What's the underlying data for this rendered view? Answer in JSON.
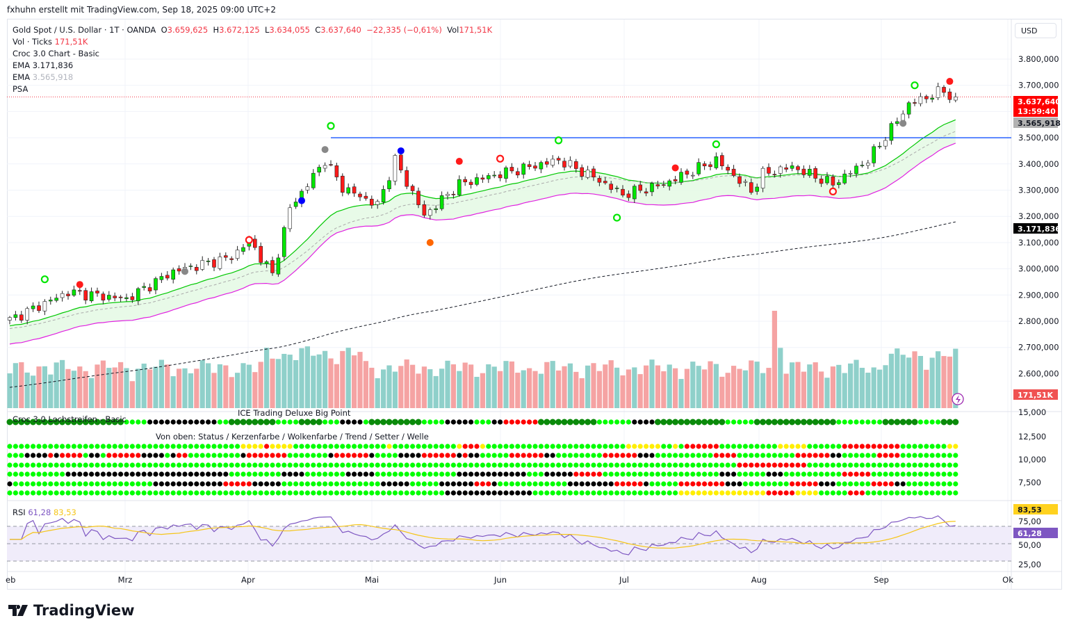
{
  "credit": "fxhuhn erstellt mit TradingView.com, Sep 18, 2025 09:00 UTC+2",
  "legend": {
    "symbol": "Gold Spot / U.S. Dollar · 1T · OANDA",
    "o_label": "O",
    "o": "3.659,625",
    "h_label": "H",
    "h": "3.672,125",
    "l_label": "L",
    "l": "3.634,055",
    "c_label": "C",
    "c": "3.637,640",
    "change": "−22,335 (−0,61%)",
    "vol_label": "Vol",
    "vol": "171,51K",
    "line2_label": "Vol · Ticks",
    "line2_value": "171,51K",
    "line3": "Croc 3.0 Chart - Basic",
    "ema1_label": "EMA",
    "ema1_value": "3.171,836",
    "ema2_label": "EMA",
    "ema2_value": "3.565,918",
    "psa": "PSA"
  },
  "currency": "USD",
  "price_axis": [
    "3.800,000",
    "3.700,000",
    "3.500,000",
    "3.400,000",
    "3.300,000",
    "3.200,000",
    "3.100,000",
    "3.000,000",
    "2.900,000",
    "2.800,000",
    "2.700,000",
    "2.600,000"
  ],
  "tags": {
    "last_price": "3.637,640",
    "countdown": "13:59:40",
    "ema_short": "3.565,918",
    "ema_long": "3.171,836",
    "volume": "171,51K",
    "rsi_ma": "83,53",
    "rsi": "61,28"
  },
  "dots_axis": [
    "15,000",
    "12,500",
    "10,000",
    "7,500"
  ],
  "rsi_axis": [
    "75,00",
    "50,00",
    "25,00"
  ],
  "panels": {
    "lochstreifen": "Croc 3.0 Lochstreifen - Basic",
    "big_point": "ICE Trading Deluxe Big Point",
    "rows_caption": "Von oben: Status / Kerzenfarbe / Wolkenfarbe / Trend / Setter / Welle",
    "rsi_label": "RSI",
    "rsi_value": "61,28",
    "rsi_ma_value": "83,53"
  },
  "time_axis": [
    "eb",
    "Mrz",
    "Apr",
    "Mai",
    "Jun",
    "Jul",
    "Aug",
    "Sep",
    "Ok"
  ],
  "brand": "TradingView",
  "colors": {
    "up": "#00e600",
    "down": "#ff1a1a",
    "vol_up": "#8fd0ca",
    "vol_down": "#f5a3a3",
    "ema_cloud": "#00c800",
    "lower_band": "#e020e0",
    "resistance": "#2962ff",
    "ema_long": "#131722",
    "rsi": "#7e57c2",
    "rsi_ma": "#f5c518"
  },
  "chart_data": {
    "type": "candlestick",
    "title": "Gold Spot / U.S. Dollar · 1T · OANDA",
    "bars": 163,
    "close_anchors": [
      [
        0,
        2805
      ],
      [
        10,
        2911
      ],
      [
        20,
        2885
      ],
      [
        28,
        2990
      ],
      [
        38,
        3044
      ],
      [
        41,
        3110
      ],
      [
        45,
        2978
      ],
      [
        48,
        3230
      ],
      [
        54,
        3415
      ],
      [
        57,
        3310
      ],
      [
        63,
        3243
      ],
      [
        66,
        3415
      ],
      [
        71,
        3203
      ],
      [
        77,
        3323
      ],
      [
        84,
        3362
      ],
      [
        94,
        3415
      ],
      [
        100,
        3350
      ],
      [
        105,
        3283
      ],
      [
        112,
        3323
      ],
      [
        121,
        3415
      ],
      [
        127,
        3296
      ],
      [
        129,
        3362
      ],
      [
        134,
        3389
      ],
      [
        141,
        3323
      ],
      [
        147,
        3415
      ],
      [
        151,
        3535
      ],
      [
        154,
        3628
      ],
      [
        160,
        3681
      ],
      [
        162,
        3638
      ]
    ],
    "resistance_level": 3500,
    "resistance_from_bar": 55,
    "ema_long_seed": 2545,
    "ylim": [
      2540,
      3840
    ],
    "volume_spike_bars": [
      [
        131,
        420000
      ],
      [
        132,
        260000
      ]
    ],
    "signals": [
      [
        6,
        2960,
        "#00e600",
        "ring"
      ],
      [
        12,
        2940,
        "#ff1a1a",
        "dot"
      ],
      [
        30,
        2990,
        "#888888",
        "dot"
      ],
      [
        41,
        3110,
        "#ff1a1a",
        "ring"
      ],
      [
        50,
        3260,
        "#0000ff",
        "dot"
      ],
      [
        54,
        3455,
        "#888888",
        "dot"
      ],
      [
        55,
        3545,
        "#00e600",
        "ring"
      ],
      [
        67,
        3450,
        "#0000ff",
        "dot"
      ],
      [
        72,
        3100,
        "#ff6600",
        "dot"
      ],
      [
        77,
        3410,
        "#ff1a1a",
        "dot"
      ],
      [
        84,
        3420,
        "#ff1a1a",
        "ring"
      ],
      [
        94,
        3490,
        "#00e600",
        "ring"
      ],
      [
        104,
        3195,
        "#00e600",
        "ring"
      ],
      [
        114,
        3385,
        "#ff1a1a",
        "dot"
      ],
      [
        121,
        3475,
        "#00e600",
        "ring"
      ],
      [
        141,
        3295,
        "#ff1a1a",
        "ring"
      ],
      [
        153,
        3555,
        "#888888",
        "dot"
      ],
      [
        155,
        3700,
        "#00e600",
        "ring"
      ],
      [
        161,
        3715,
        "#ff1a1a",
        "dot"
      ]
    ],
    "dot_rows": {
      "lochstreifen": "G20 g4 k12 g2 G8 g4 G4 g3 k4 g1 G9 g4 k5 g3 k2 r6 G10 g6 k4 G12 g5 G14 g8 G6 g4 G10 g6",
      "status": "g40 y4 r1 y4 g16 y1 g11 y1 r3 y1 g24 y6 g2 y1 g1 r6 g10 y5 g6 r10 g8 y4 g10 r6 g10",
      "kerzenfarbe": "g3 k4 r1 k1 r4 g1 k2 g1 r6 k4 g1 k1 r2 g9 k1 r7 g7 k1 r6 k1 g4 k4 r6 k1 r1 k2 g5 r6 k2 g8 r6 k3 g10 r4 g10 r6 k2 g6 r4 g4",
      "wolkenfarbe": "g125 r12 g26",
      "trend": "g10 k28 g9 k4 g7 k5 g14 k12 g3 k5 r5 g20 k3 g5 k3 g10 r5 g10",
      "setter": "k1 g24 k12 r5 k5 g17 k5 g5 k6 r3 k1 g12 k8 r5 k1 g5 r8 k3 g8 r5 k3 g6 r4 k2 g4",
      "welle": "g75 k15 g25 y15 r5 y4 g5 r3 g16"
    }
  }
}
